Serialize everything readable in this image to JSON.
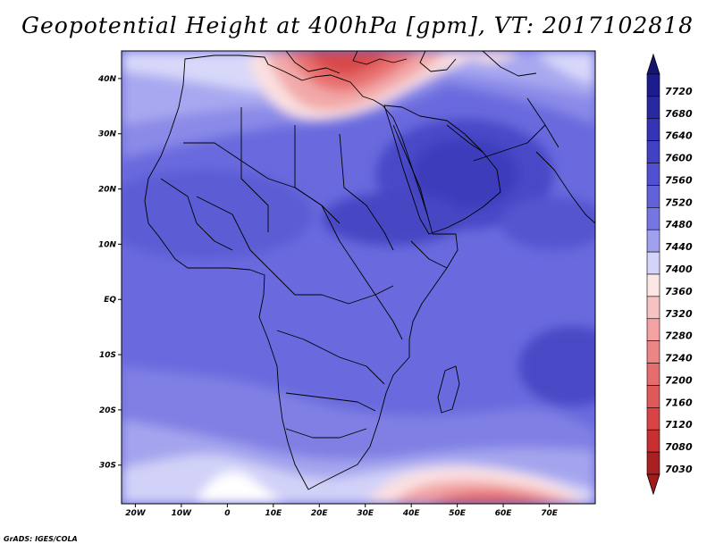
{
  "title": "Geopotential Height at 400hPa [gpm], VT: 2017102818",
  "credit": "GrADS: IGES/COLA",
  "map": {
    "lon_range": [
      -23,
      80
    ],
    "lat_range": [
      -37,
      45
    ],
    "lat_ticks": [
      {
        "value": 40,
        "label": "40N"
      },
      {
        "value": 30,
        "label": "30N"
      },
      {
        "value": 20,
        "label": "20N"
      },
      {
        "value": 10,
        "label": "10N"
      },
      {
        "value": 0,
        "label": "EQ"
      },
      {
        "value": -10,
        "label": "10S"
      },
      {
        "value": -20,
        "label": "20S"
      },
      {
        "value": -30,
        "label": "30S"
      }
    ],
    "lon_ticks": [
      {
        "value": -20,
        "label": "20W"
      },
      {
        "value": -10,
        "label": "10W"
      },
      {
        "value": 0,
        "label": "0"
      },
      {
        "value": 10,
        "label": "10E"
      },
      {
        "value": 20,
        "label": "20E"
      },
      {
        "value": 30,
        "label": "30E"
      },
      {
        "value": 40,
        "label": "40E"
      },
      {
        "value": 50,
        "label": "50E"
      },
      {
        "value": 60,
        "label": "60E"
      },
      {
        "value": 70,
        "label": "70E"
      }
    ]
  },
  "colorbar": {
    "levels": [
      {
        "label": "7720",
        "color": "#1c1c8c"
      },
      {
        "label": "7680",
        "color": "#2828a0"
      },
      {
        "label": "7640",
        "color": "#3434b4"
      },
      {
        "label": "7600",
        "color": "#4141c4"
      },
      {
        "label": "7560",
        "color": "#5050d0"
      },
      {
        "label": "7520",
        "color": "#6262d8"
      },
      {
        "label": "7480",
        "color": "#7676e2"
      },
      {
        "label": "7440",
        "color": "#a0a0ee"
      },
      {
        "label": "7400",
        "color": "#d4d4fa"
      },
      {
        "label": "7360",
        "color": "#fde6e6"
      },
      {
        "label": "7320",
        "color": "#f7c2c2"
      },
      {
        "label": "7280",
        "color": "#f2a2a2"
      },
      {
        "label": "7240",
        "color": "#ec8686"
      },
      {
        "label": "7200",
        "color": "#e46e6e"
      },
      {
        "label": "7160",
        "color": "#de5a5a"
      },
      {
        "label": "7120",
        "color": "#d84444"
      },
      {
        "label": "7080",
        "color": "#c83030"
      },
      {
        "label": "7030",
        "color": "#aa2020"
      }
    ],
    "top_arrow_color": "#161672",
    "bottom_arrow_color": "#a01c1c"
  }
}
